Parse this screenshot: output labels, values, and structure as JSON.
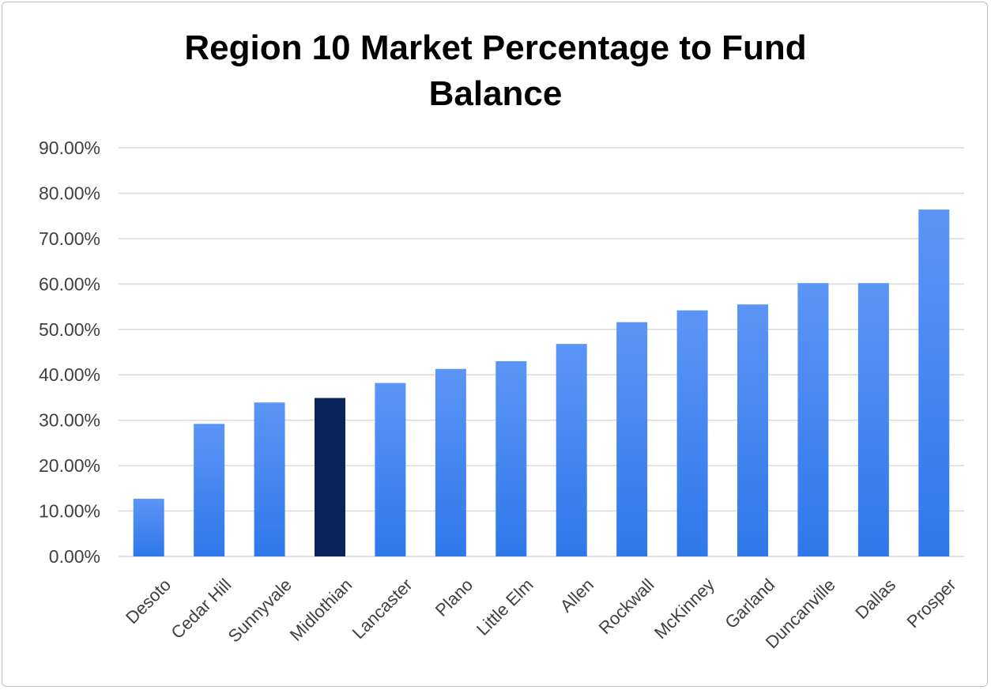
{
  "chart_data": {
    "type": "bar",
    "title_lines": [
      "Region 10 Market Percentage to Fund",
      "Balance"
    ],
    "categories": [
      "Desoto",
      "Cedar Hill",
      "Sunnyvale",
      "Midlothian",
      "Lancaster",
      "Plano",
      "Little Elm",
      "Allen",
      "Rockwall",
      "McKinney",
      "Garland",
      "Duncanville",
      "Dallas",
      "Prosper"
    ],
    "values": [
      12.7,
      29.2,
      33.9,
      34.9,
      38.2,
      41.3,
      43.0,
      46.8,
      51.6,
      54.2,
      55.5,
      60.2,
      60.2,
      76.4
    ],
    "highlight_category": "Midlothian",
    "y_ticks": [
      "0.00%",
      "10.00%",
      "20.00%",
      "30.00%",
      "40.00%",
      "50.00%",
      "60.00%",
      "70.00%",
      "80.00%",
      "90.00%"
    ],
    "ylim": [
      0,
      90
    ],
    "xlabel": "",
    "ylabel": "",
    "grid": true,
    "legend": "none",
    "colors": {
      "bar_top": "#5b95f6",
      "bar_bottom": "#2f78ea",
      "highlight": "#0b2359",
      "grid": "#d9d9d9",
      "text": "#404040"
    }
  }
}
